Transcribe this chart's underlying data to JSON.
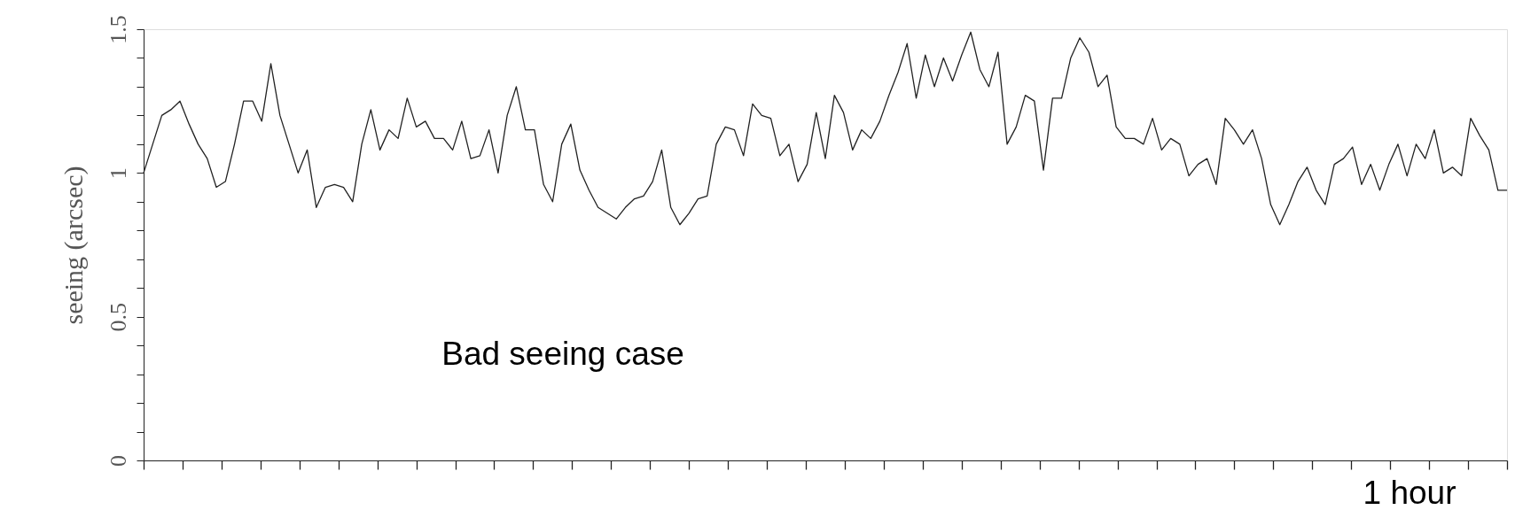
{
  "chart_data": {
    "type": "line",
    "ylabel": "seeing (arcsec)",
    "categories": [
      null,
      null,
      null,
      null,
      null,
      null,
      null,
      null,
      null,
      null,
      null,
      null,
      null,
      null,
      null,
      null,
      null,
      null,
      null,
      null,
      null,
      null,
      null,
      null,
      null,
      null,
      null,
      null,
      null,
      null,
      null,
      null,
      null,
      null,
      null,
      null,
      null,
      null,
      null,
      null,
      null,
      null,
      null,
      null,
      null,
      null,
      null,
      null,
      null,
      null,
      null,
      null,
      null,
      null,
      null,
      null,
      null,
      null,
      null,
      null,
      null,
      null,
      null,
      null,
      null,
      null,
      null,
      null,
      null,
      null,
      null,
      null,
      null,
      null,
      null,
      null,
      null,
      null,
      null,
      null,
      null,
      null,
      null,
      null,
      null,
      null,
      null,
      null,
      null,
      null,
      null,
      null,
      null,
      null,
      null,
      null,
      null,
      null,
      null,
      null,
      null,
      null,
      null,
      null,
      null,
      null,
      null,
      null,
      null,
      null,
      null,
      null,
      null,
      null,
      null,
      null,
      null,
      null,
      null,
      null,
      null,
      null,
      null,
      null,
      null,
      null,
      null,
      null,
      null,
      null,
      null,
      null,
      null,
      null,
      null,
      null,
      null,
      null,
      null,
      null,
      null,
      null,
      null,
      null,
      null,
      null,
      null,
      null,
      null,
      null,
      null
    ],
    "series": [
      {
        "color": "#222222",
        "values": [
          1.0,
          1.1,
          1.2,
          1.22,
          1.25,
          1.17,
          1.1,
          1.05,
          0.95,
          0.97,
          1.1,
          1.25,
          1.25,
          1.18,
          1.38,
          1.2,
          1.1,
          1.0,
          1.08,
          0.88,
          0.95,
          0.96,
          0.95,
          0.9,
          1.1,
          1.22,
          1.08,
          1.15,
          1.12,
          1.26,
          1.16,
          1.18,
          1.12,
          1.12,
          1.08,
          1.18,
          1.05,
          1.06,
          1.15,
          1.0,
          1.2,
          1.3,
          1.15,
          1.15,
          0.96,
          0.9,
          1.1,
          1.17,
          1.01,
          0.94,
          0.88,
          0.86,
          0.84,
          0.88,
          0.91,
          0.92,
          0.97,
          1.08,
          0.88,
          0.82,
          0.86,
          0.91,
          0.92,
          1.1,
          1.16,
          1.15,
          1.06,
          1.24,
          1.2,
          1.19,
          1.06,
          1.1,
          0.97,
          1.03,
          1.21,
          1.05,
          1.27,
          1.21,
          1.08,
          1.15,
          1.12,
          1.18,
          1.27,
          1.35,
          1.45,
          1.26,
          1.41,
          1.3,
          1.4,
          1.32,
          1.41,
          1.49,
          1.36,
          1.3,
          1.42,
          1.1,
          1.16,
          1.27,
          1.25,
          1.01,
          1.26,
          1.26,
          1.4,
          1.47,
          1.42,
          1.3,
          1.34,
          1.16,
          1.12,
          1.12,
          1.1,
          1.19,
          1.08,
          1.12,
          1.1,
          0.99,
          1.03,
          1.05,
          0.96,
          1.19,
          1.15,
          1.1,
          1.15,
          1.05,
          0.89,
          0.82,
          0.89,
          0.97,
          1.02,
          0.94,
          0.89,
          1.03,
          1.05,
          1.09,
          0.96,
          1.03,
          0.94,
          1.03,
          1.1,
          0.99,
          1.1,
          1.05,
          1.15,
          1.0,
          1.02,
          0.99,
          1.19,
          1.13,
          1.08,
          0.94,
          0.94
        ]
      }
    ],
    "ylim": [
      0,
      1.5
    ],
    "yticks": [
      0,
      {
        "value": 0.1,
        "label": null
      },
      {
        "value": 0.2,
        "label": null
      },
      {
        "value": 0.3,
        "label": null
      },
      {
        "value": 0.4,
        "label": null
      },
      0.5,
      {
        "value": 0.6,
        "label": null
      },
      {
        "value": 0.7,
        "label": null
      },
      {
        "value": 0.8,
        "label": null
      },
      {
        "value": 0.9,
        "label": null
      },
      1,
      {
        "value": 1.1,
        "label": null
      },
      {
        "value": 1.2,
        "label": null
      },
      {
        "value": 1.3,
        "label": null
      },
      {
        "value": 1.4,
        "label": null
      },
      1.5
    ],
    "tick_labels": "y",
    "grid": false,
    "annotations": [
      "Bad seeing case",
      "1 hour"
    ]
  }
}
